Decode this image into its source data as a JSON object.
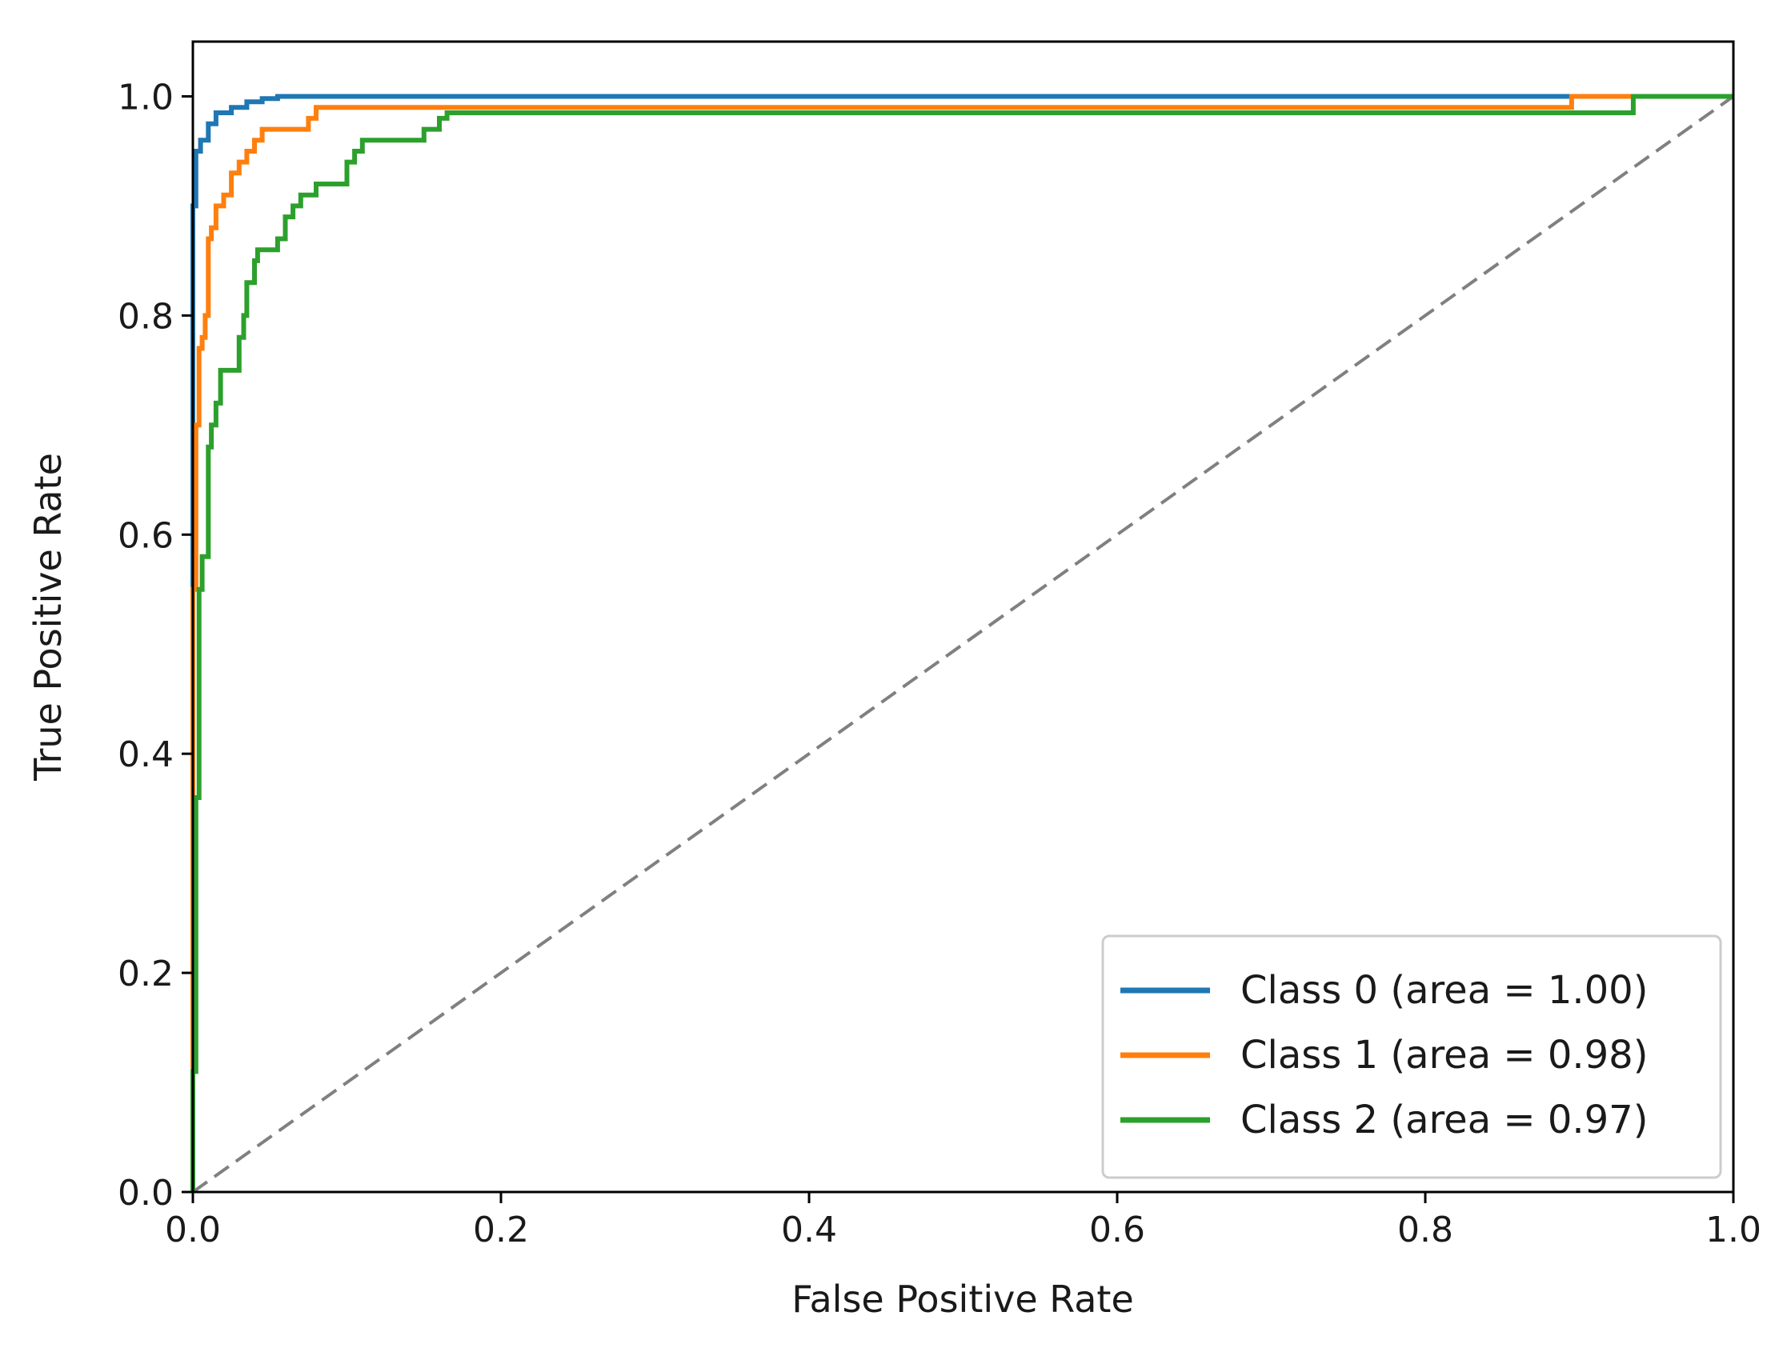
{
  "chart_data": {
    "type": "line",
    "title": "",
    "xlabel": "False Positive Rate",
    "ylabel": "True Positive Rate",
    "xlim": [
      0.0,
      1.0
    ],
    "ylim": [
      0.0,
      1.05
    ],
    "xticks": [
      "0.0",
      "0.2",
      "0.4",
      "0.6",
      "0.8",
      "1.0"
    ],
    "yticks": [
      "0.0",
      "0.2",
      "0.4",
      "0.6",
      "0.8",
      "1.0"
    ],
    "grid": false,
    "legend_position": "lower-right",
    "series": [
      {
        "name": "Class 0 (area = 1.00)",
        "color": "#1f77b4",
        "x": [
          0,
          0,
          0.002,
          0.002,
          0.005,
          0.005,
          0.01,
          0.01,
          0.015,
          0.015,
          0.025,
          0.025,
          0.035,
          0.035,
          0.045,
          0.045,
          0.055,
          0.055,
          0.9,
          0.9,
          1.0
        ],
        "y": [
          0,
          0.9,
          0.9,
          0.95,
          0.95,
          0.96,
          0.96,
          0.975,
          0.975,
          0.985,
          0.985,
          0.99,
          0.99,
          0.995,
          0.995,
          0.998,
          0.998,
          1.0,
          1.0,
          1.0,
          1.0
        ]
      },
      {
        "name": "Class 1 (area = 0.98)",
        "color": "#ff7f0e",
        "x": [
          0,
          0,
          0.002,
          0.002,
          0.004,
          0.004,
          0.006,
          0.006,
          0.008,
          0.008,
          0.01,
          0.01,
          0.012,
          0.012,
          0.015,
          0.015,
          0.02,
          0.02,
          0.025,
          0.025,
          0.03,
          0.03,
          0.035,
          0.035,
          0.04,
          0.04,
          0.045,
          0.045,
          0.075,
          0.075,
          0.08,
          0.08,
          0.895,
          0.895,
          0.935,
          0.935,
          1.0
        ],
        "y": [
          0,
          0.55,
          0.55,
          0.7,
          0.7,
          0.77,
          0.77,
          0.78,
          0.78,
          0.8,
          0.8,
          0.87,
          0.87,
          0.88,
          0.88,
          0.9,
          0.9,
          0.91,
          0.91,
          0.93,
          0.93,
          0.94,
          0.94,
          0.95,
          0.95,
          0.96,
          0.96,
          0.97,
          0.97,
          0.98,
          0.98,
          0.99,
          0.99,
          1.0,
          1.0,
          1.0,
          1.0
        ]
      },
      {
        "name": "Class 2 (area = 0.97)",
        "color": "#2ca02c",
        "x": [
          0,
          0,
          0.002,
          0.002,
          0.004,
          0.004,
          0.006,
          0.006,
          0.01,
          0.01,
          0.012,
          0.012,
          0.015,
          0.015,
          0.018,
          0.018,
          0.02,
          0.02,
          0.025,
          0.025,
          0.03,
          0.03,
          0.033,
          0.033,
          0.035,
          0.035,
          0.04,
          0.04,
          0.042,
          0.042,
          0.045,
          0.045,
          0.055,
          0.055,
          0.06,
          0.06,
          0.065,
          0.065,
          0.07,
          0.07,
          0.075,
          0.075,
          0.08,
          0.08,
          0.1,
          0.1,
          0.105,
          0.105,
          0.11,
          0.11,
          0.15,
          0.15,
          0.16,
          0.16,
          0.165,
          0.165,
          0.935,
          0.935,
          1.0
        ],
        "y": [
          0,
          0.11,
          0.11,
          0.36,
          0.36,
          0.55,
          0.55,
          0.58,
          0.58,
          0.68,
          0.68,
          0.7,
          0.7,
          0.72,
          0.72,
          0.75,
          0.75,
          0.75,
          0.75,
          0.75,
          0.75,
          0.78,
          0.78,
          0.8,
          0.8,
          0.83,
          0.83,
          0.85,
          0.85,
          0.86,
          0.86,
          0.86,
          0.86,
          0.87,
          0.87,
          0.89,
          0.89,
          0.9,
          0.9,
          0.91,
          0.91,
          0.91,
          0.91,
          0.92,
          0.92,
          0.94,
          0.94,
          0.95,
          0.95,
          0.96,
          0.96,
          0.97,
          0.97,
          0.98,
          0.98,
          0.985,
          0.985,
          1.0,
          1.0
        ]
      }
    ],
    "reference_line": {
      "x": [
        0,
        1
      ],
      "y": [
        0,
        1
      ],
      "color": "#808080",
      "style": "dashed"
    }
  }
}
